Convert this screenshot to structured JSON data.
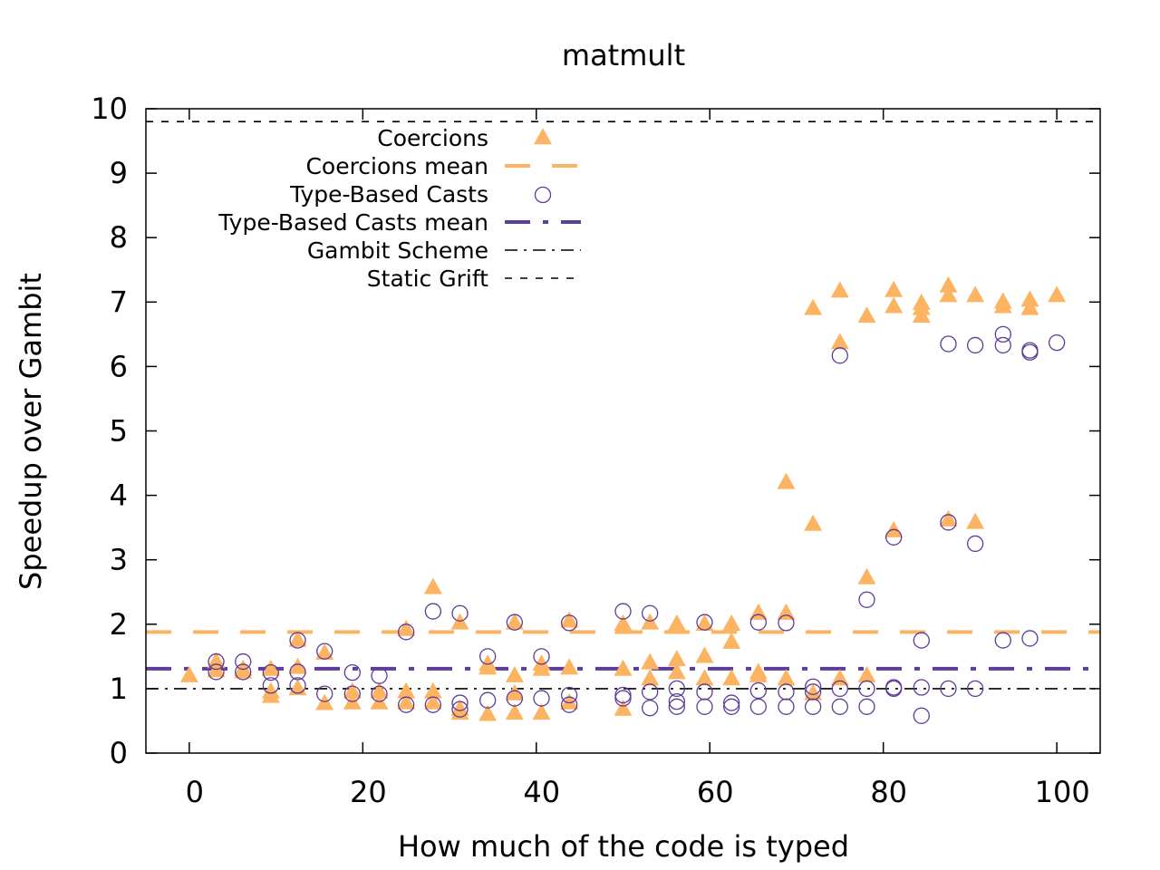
{
  "chart_data": {
    "type": "scatter",
    "title": "matmult",
    "xlabel": "How much of the code is typed",
    "ylabel": "Speedup over Gambit",
    "xlim": [
      -5,
      105
    ],
    "ylim": [
      0,
      10
    ],
    "x_ticks": [
      0,
      20,
      40,
      60,
      80,
      100
    ],
    "y_ticks": [
      0,
      1,
      2,
      3,
      4,
      5,
      6,
      7,
      8,
      9,
      10
    ],
    "grid": false,
    "legend_position": "top-left",
    "colors": {
      "coercions": "#fdb462",
      "casts": "#5e3c99",
      "gambit": "#000000",
      "static": "#000000"
    },
    "series": [
      {
        "name": "Coercions",
        "marker": "triangle",
        "points": [
          [
            0,
            1.2
          ],
          [
            3.1,
            1.42
          ],
          [
            3.1,
            1.28
          ],
          [
            6.2,
            1.3
          ],
          [
            6.2,
            1.26
          ],
          [
            9.4,
            1.3
          ],
          [
            9.4,
            0.95
          ],
          [
            9.4,
            0.88
          ],
          [
            12.5,
            1.75
          ],
          [
            12.5,
            1.33
          ],
          [
            12.5,
            1.0
          ],
          [
            15.6,
            1.55
          ],
          [
            15.6,
            0.77
          ],
          [
            18.8,
            0.95
          ],
          [
            18.8,
            0.78
          ],
          [
            21.9,
            0.95
          ],
          [
            21.9,
            0.78
          ],
          [
            25,
            1.92
          ],
          [
            25,
            0.95
          ],
          [
            25,
            0.78
          ],
          [
            28.1,
            2.57
          ],
          [
            28.1,
            0.95
          ],
          [
            28.1,
            0.78
          ],
          [
            31.2,
            2.02
          ],
          [
            31.2,
            0.68
          ],
          [
            31.2,
            0.62
          ],
          [
            34.4,
            1.38
          ],
          [
            34.4,
            1.32
          ],
          [
            34.4,
            0.6
          ],
          [
            37.5,
            2.02
          ],
          [
            37.5,
            1.2
          ],
          [
            37.5,
            0.92
          ],
          [
            37.5,
            0.62
          ],
          [
            40.6,
            1.38
          ],
          [
            40.6,
            1.3
          ],
          [
            40.6,
            0.62
          ],
          [
            43.8,
            2.05
          ],
          [
            43.8,
            1.32
          ],
          [
            43.8,
            0.78
          ],
          [
            50,
            2.0
          ],
          [
            50,
            1.95
          ],
          [
            50,
            1.3
          ],
          [
            50,
            0.68
          ],
          [
            53.1,
            2.02
          ],
          [
            53.1,
            1.4
          ],
          [
            53.1,
            1.15
          ],
          [
            56.2,
            2.0
          ],
          [
            56.2,
            1.95
          ],
          [
            56.2,
            1.45
          ],
          [
            56.2,
            1.25
          ],
          [
            59.4,
            2.0
          ],
          [
            59.4,
            1.5
          ],
          [
            59.4,
            1.15
          ],
          [
            62.5,
            2.0
          ],
          [
            62.5,
            1.72
          ],
          [
            62.5,
            1.15
          ],
          [
            65.6,
            2.17
          ],
          [
            65.6,
            1.25
          ],
          [
            65.6,
            1.2
          ],
          [
            68.8,
            4.2
          ],
          [
            68.8,
            2.17
          ],
          [
            68.8,
            1.15
          ],
          [
            71.9,
            6.9
          ],
          [
            71.9,
            3.55
          ],
          [
            71.9,
            0.92
          ],
          [
            75,
            7.17
          ],
          [
            75,
            6.37
          ],
          [
            75,
            1.15
          ],
          [
            78.1,
            6.78
          ],
          [
            78.1,
            2.72
          ],
          [
            78.1,
            1.2
          ],
          [
            81.2,
            7.18
          ],
          [
            81.2,
            6.93
          ],
          [
            81.2,
            3.45
          ],
          [
            84.4,
            6.98
          ],
          [
            84.4,
            6.9
          ],
          [
            84.4,
            6.78
          ],
          [
            87.5,
            7.25
          ],
          [
            87.5,
            7.1
          ],
          [
            87.5,
            3.62
          ],
          [
            90.6,
            7.1
          ],
          [
            90.6,
            3.58
          ],
          [
            93.8,
            7.0
          ],
          [
            93.8,
            6.93
          ],
          [
            96.9,
            7.03
          ],
          [
            96.9,
            6.9
          ],
          [
            100,
            7.1
          ]
        ]
      },
      {
        "name": "Coercions mean",
        "line": "dashed",
        "value": 1.88
      },
      {
        "name": "Type-Based Casts",
        "marker": "circle",
        "points": [
          [
            3.1,
            1.42
          ],
          [
            3.1,
            1.26
          ],
          [
            6.2,
            1.42
          ],
          [
            6.2,
            1.26
          ],
          [
            9.4,
            1.25
          ],
          [
            9.4,
            1.05
          ],
          [
            12.5,
            1.75
          ],
          [
            12.5,
            1.26
          ],
          [
            12.5,
            1.05
          ],
          [
            15.6,
            1.58
          ],
          [
            15.6,
            0.92
          ],
          [
            18.8,
            1.25
          ],
          [
            18.8,
            0.92
          ],
          [
            21.9,
            1.2
          ],
          [
            21.9,
            0.92
          ],
          [
            25,
            1.88
          ],
          [
            25,
            0.75
          ],
          [
            28.1,
            2.2
          ],
          [
            28.1,
            0.75
          ],
          [
            31.2,
            2.17
          ],
          [
            31.2,
            0.78
          ],
          [
            31.2,
            0.68
          ],
          [
            34.4,
            1.5
          ],
          [
            34.4,
            0.82
          ],
          [
            37.5,
            2.03
          ],
          [
            37.5,
            0.85
          ],
          [
            40.6,
            1.5
          ],
          [
            40.6,
            0.85
          ],
          [
            43.8,
            2.02
          ],
          [
            43.8,
            0.9
          ],
          [
            43.8,
            0.75
          ],
          [
            50,
            2.2
          ],
          [
            50,
            0.9
          ],
          [
            50,
            0.85
          ],
          [
            53.1,
            2.17
          ],
          [
            53.1,
            0.95
          ],
          [
            53.1,
            0.7
          ],
          [
            56.2,
            1.0
          ],
          [
            56.2,
            0.8
          ],
          [
            56.2,
            0.72
          ],
          [
            59.4,
            2.03
          ],
          [
            59.4,
            0.95
          ],
          [
            59.4,
            0.72
          ],
          [
            62.5,
            0.78
          ],
          [
            62.5,
            0.72
          ],
          [
            65.6,
            2.03
          ],
          [
            65.6,
            0.97
          ],
          [
            65.6,
            0.72
          ],
          [
            68.8,
            2.02
          ],
          [
            68.8,
            0.95
          ],
          [
            68.8,
            0.72
          ],
          [
            71.9,
            1.03
          ],
          [
            71.9,
            0.95
          ],
          [
            71.9,
            0.72
          ],
          [
            75,
            6.17
          ],
          [
            75,
            1.0
          ],
          [
            75,
            0.72
          ],
          [
            78.1,
            2.38
          ],
          [
            78.1,
            1.0
          ],
          [
            78.1,
            0.72
          ],
          [
            81.2,
            3.35
          ],
          [
            81.2,
            1.02
          ],
          [
            81.2,
            1.0
          ],
          [
            84.4,
            1.75
          ],
          [
            84.4,
            1.02
          ],
          [
            84.4,
            0.58
          ],
          [
            87.5,
            6.35
          ],
          [
            87.5,
            3.58
          ],
          [
            87.5,
            1.0
          ],
          [
            90.6,
            6.33
          ],
          [
            90.6,
            3.25
          ],
          [
            90.6,
            1.0
          ],
          [
            93.8,
            6.5
          ],
          [
            93.8,
            6.33
          ],
          [
            93.8,
            1.75
          ],
          [
            96.9,
            6.25
          ],
          [
            96.9,
            6.22
          ],
          [
            96.9,
            1.78
          ],
          [
            100,
            6.37
          ]
        ]
      },
      {
        "name": "Type-Based Casts mean",
        "line": "dash-dot",
        "value": 1.31
      },
      {
        "name": "Gambit Scheme",
        "line": "dash-dot-thin",
        "value": 1.0
      },
      {
        "name": "Static Grift",
        "line": "dashed-thin",
        "value": 9.8
      }
    ]
  }
}
